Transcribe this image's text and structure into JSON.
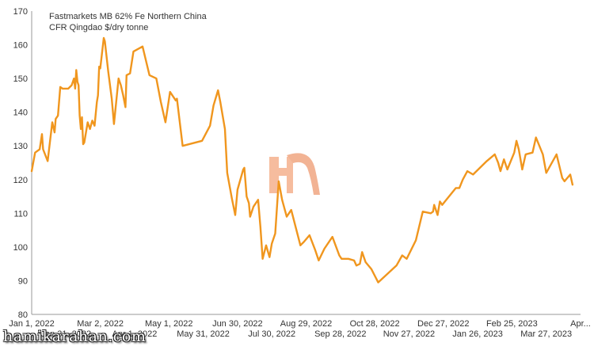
{
  "chart_data": {
    "type": "line",
    "title_lines": [
      "Fastmarkets MB 62% Fe Northern China",
      "CFR Qingdao $/dry tonne"
    ],
    "xlabel": "",
    "ylabel": "",
    "ylim": [
      80,
      170
    ],
    "yticks": [
      80,
      90,
      100,
      110,
      120,
      130,
      140,
      150,
      160,
      170
    ],
    "xlim": [
      "2022-01-01",
      "2023-04-26"
    ],
    "x_tick_labels_row1": [
      {
        "date": "2022-01-01",
        "label": "Jan 1, 2022"
      },
      {
        "date": "2022-03-02",
        "label": "Mar 2, 2022"
      },
      {
        "date": "2022-05-01",
        "label": "May 1, 2022"
      },
      {
        "date": "2022-06-30",
        "label": "Jun 30, 2022"
      },
      {
        "date": "2022-08-29",
        "label": "Aug 29, 2022"
      },
      {
        "date": "2022-10-28",
        "label": "Oct 28, 2022"
      },
      {
        "date": "2022-12-27",
        "label": "Dec 27, 2022"
      },
      {
        "date": "2023-02-25",
        "label": "Feb 25, 2023"
      },
      {
        "date": "2023-04-26",
        "label": "Apr..."
      }
    ],
    "x_tick_labels_row2": [
      {
        "date": "2022-01-31",
        "label": "Jan 31, 2022"
      },
      {
        "date": "2022-04-01",
        "label": "Apr 1, 2022"
      },
      {
        "date": "2022-05-31",
        "label": "May 31, 2022"
      },
      {
        "date": "2022-07-30",
        "label": "Jul 30, 2022"
      },
      {
        "date": "2022-09-28",
        "label": "Sep 28, 2022"
      },
      {
        "date": "2022-11-27",
        "label": "Nov 27, 2022"
      },
      {
        "date": "2023-01-26",
        "label": "Jan 26, 2023"
      },
      {
        "date": "2023-03-27",
        "label": "Mar 27, 2023"
      }
    ],
    "series": [
      {
        "name": "",
        "color": "#F0961E",
        "points": [
          [
            "2022-01-01",
            122.5
          ],
          [
            "2022-01-04",
            128
          ],
          [
            "2022-01-08",
            129
          ],
          [
            "2022-01-10",
            133.5
          ],
          [
            "2022-01-11",
            129
          ],
          [
            "2022-01-15",
            125.5
          ],
          [
            "2022-01-19",
            137
          ],
          [
            "2022-01-21",
            134
          ],
          [
            "2022-01-22",
            138
          ],
          [
            "2022-01-24",
            139
          ],
          [
            "2022-01-26",
            147.5
          ],
          [
            "2022-01-28",
            147
          ],
          [
            "2022-02-02",
            147
          ],
          [
            "2022-02-05",
            148
          ],
          [
            "2022-02-07",
            150
          ],
          [
            "2022-02-08",
            147
          ],
          [
            "2022-02-09",
            152.5
          ],
          [
            "2022-02-10",
            149
          ],
          [
            "2022-02-11",
            148
          ],
          [
            "2022-02-12",
            139
          ],
          [
            "2022-02-13",
            135
          ],
          [
            "2022-02-14",
            138.5
          ],
          [
            "2022-02-15",
            130.5
          ],
          [
            "2022-02-16",
            131
          ],
          [
            "2022-02-19",
            137
          ],
          [
            "2022-02-21",
            135
          ],
          [
            "2022-02-23",
            137.5
          ],
          [
            "2022-02-25",
            136
          ],
          [
            "2022-02-27",
            143
          ],
          [
            "2022-02-28",
            145
          ],
          [
            "2022-03-01",
            153.5
          ],
          [
            "2022-03-02",
            153
          ],
          [
            "2022-03-05",
            162
          ],
          [
            "2022-03-06",
            161
          ],
          [
            "2022-03-09",
            152
          ],
          [
            "2022-03-12",
            144
          ],
          [
            "2022-03-14",
            136.5
          ],
          [
            "2022-03-18",
            150
          ],
          [
            "2022-03-20",
            148
          ],
          [
            "2022-03-22",
            145
          ],
          [
            "2022-03-24",
            141.5
          ],
          [
            "2022-03-25",
            151
          ],
          [
            "2022-03-28",
            151.5
          ],
          [
            "2022-03-31",
            158
          ],
          [
            "2022-04-08",
            159.5
          ],
          [
            "2022-04-14",
            151
          ],
          [
            "2022-04-20",
            150
          ],
          [
            "2022-04-24",
            143
          ],
          [
            "2022-04-28",
            137
          ],
          [
            "2022-05-02",
            146
          ],
          [
            "2022-05-07",
            143.5
          ],
          [
            "2022-05-08",
            144
          ],
          [
            "2022-05-13",
            130
          ],
          [
            "2022-05-30",
            131.5
          ],
          [
            "2022-06-06",
            136
          ],
          [
            "2022-06-09",
            142
          ],
          [
            "2022-06-13",
            146.5
          ],
          [
            "2022-06-15",
            143
          ],
          [
            "2022-06-19",
            135
          ],
          [
            "2022-06-21",
            122
          ],
          [
            "2022-06-25",
            114.5
          ],
          [
            "2022-06-28",
            109.5
          ],
          [
            "2022-06-30",
            117
          ],
          [
            "2022-07-05",
            123
          ],
          [
            "2022-07-06",
            123.5
          ],
          [
            "2022-07-08",
            115
          ],
          [
            "2022-07-10",
            113
          ],
          [
            "2022-07-11",
            109
          ],
          [
            "2022-07-14",
            112
          ],
          [
            "2022-07-18",
            114
          ],
          [
            "2022-07-20",
            106
          ],
          [
            "2022-07-22",
            96.5
          ],
          [
            "2022-07-25",
            100.5
          ],
          [
            "2022-07-28",
            97
          ],
          [
            "2022-07-30",
            101
          ],
          [
            "2022-08-02",
            104
          ],
          [
            "2022-08-05",
            119.5
          ],
          [
            "2022-08-08",
            114
          ],
          [
            "2022-08-12",
            109
          ],
          [
            "2022-08-16",
            111
          ],
          [
            "2022-08-24",
            100.5
          ],
          [
            "2022-08-27",
            101.5
          ],
          [
            "2022-09-01",
            103.5
          ],
          [
            "2022-09-06",
            99
          ],
          [
            "2022-09-09",
            96
          ],
          [
            "2022-09-14",
            99.5
          ],
          [
            "2022-09-21",
            103
          ],
          [
            "2022-09-27",
            97.5
          ],
          [
            "2022-09-29",
            96.5
          ],
          [
            "2022-10-05",
            96.5
          ],
          [
            "2022-10-10",
            96
          ],
          [
            "2022-10-12",
            94.5
          ],
          [
            "2022-10-15",
            95
          ],
          [
            "2022-10-17",
            98.5
          ],
          [
            "2022-10-20",
            95.5
          ],
          [
            "2022-10-25",
            93.5
          ],
          [
            "2022-10-31",
            89.5
          ],
          [
            "2022-11-16",
            94.5
          ],
          [
            "2022-11-21",
            97.5
          ],
          [
            "2022-11-25",
            96.5
          ],
          [
            "2022-12-03",
            102
          ],
          [
            "2022-12-09",
            110.5
          ],
          [
            "2022-12-16",
            110
          ],
          [
            "2022-12-18",
            110.5
          ],
          [
            "2022-12-19",
            112.5
          ],
          [
            "2022-12-22",
            109.5
          ],
          [
            "2022-12-24",
            113.5
          ],
          [
            "2022-12-26",
            112.5
          ],
          [
            "2023-01-07",
            117.5
          ],
          [
            "2023-01-10",
            117.5
          ],
          [
            "2023-01-13",
            120
          ],
          [
            "2023-01-17",
            122.5
          ],
          [
            "2023-01-22",
            121.5
          ],
          [
            "2023-02-03",
            125.5
          ],
          [
            "2023-02-10",
            127.5
          ],
          [
            "2023-02-13",
            125
          ],
          [
            "2023-02-15",
            122.5
          ],
          [
            "2023-02-18",
            126
          ],
          [
            "2023-02-21",
            123
          ],
          [
            "2023-02-27",
            128
          ],
          [
            "2023-03-01",
            131.5
          ],
          [
            "2023-03-03",
            129
          ],
          [
            "2023-03-06",
            123
          ],
          [
            "2023-03-09",
            127.5
          ],
          [
            "2023-03-15",
            128
          ],
          [
            "2023-03-18",
            132.5
          ],
          [
            "2023-03-24",
            127.5
          ],
          [
            "2023-03-27",
            122
          ],
          [
            "2023-04-05",
            127.5
          ],
          [
            "2023-04-10",
            120.5
          ],
          [
            "2023-04-12",
            119.5
          ],
          [
            "2023-04-17",
            121.5
          ],
          [
            "2023-04-19",
            118.5
          ]
        ]
      }
    ]
  },
  "logo": {
    "icon": "hf-logo-icon",
    "color": "#F2A07A"
  },
  "watermark": {
    "text": "hamikarahan.com"
  },
  "colors": {
    "axis": "#999999",
    "line": "#F0961E"
  }
}
